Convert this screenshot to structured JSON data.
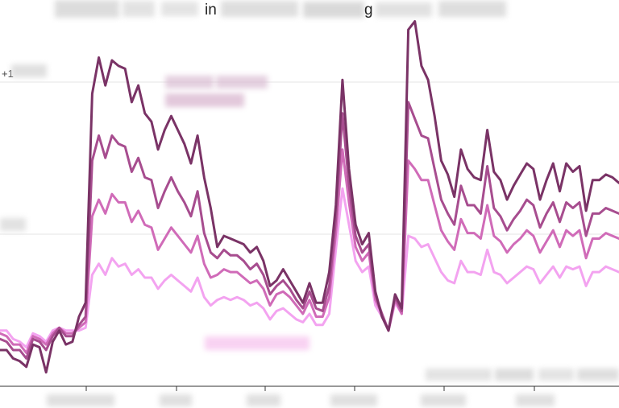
{
  "chart_data": {
    "type": "line",
    "title_fragments": [
      "in",
      "g"
    ],
    "y_tick_labels": [
      "+1",
      ""
    ],
    "x_range": [
      0,
      94
    ],
    "y_range": [
      -1,
      12
    ],
    "series": [
      {
        "color": "#7a3366",
        "values": [
          0.3,
          0.3,
          0.0,
          -0.1,
          -0.3,
          0.5,
          0.4,
          -0.5,
          0.6,
          1.0,
          0.5,
          0.6,
          1.5,
          2.0,
          9.5,
          10.8,
          9.8,
          10.7,
          10.5,
          10.4,
          9.2,
          9.8,
          8.8,
          8.5,
          7.5,
          8.2,
          8.7,
          8.2,
          7.7,
          7.0,
          8.0,
          6.5,
          5.4,
          4.0,
          4.4,
          4.3,
          4.2,
          4.1,
          3.8,
          4.0,
          3.5,
          2.6,
          2.8,
          3.2,
          2.8,
          2.4,
          2.0,
          2.7,
          2.0,
          2.0,
          3.1,
          5.5,
          10.0,
          6.8,
          4.8,
          4.1,
          4.5,
          2.4,
          1.5,
          1.0,
          2.3,
          1.8,
          11.8,
          12.1,
          10.5,
          10.0,
          8.7,
          7.1,
          6.6,
          5.8,
          7.5,
          6.8,
          6.5,
          6.4,
          8.2,
          6.7,
          6.4,
          5.7,
          6.2,
          6.6,
          7.0,
          6.8,
          5.7,
          6.4,
          7.0,
          6.0,
          7.0,
          6.7,
          6.9,
          5.3,
          6.4,
          6.4,
          6.6,
          6.5,
          6.3
        ]
      },
      {
        "color": "#a74d8f",
        "values": [
          0.7,
          0.6,
          0.3,
          0.3,
          0.0,
          0.7,
          0.6,
          0.3,
          0.8,
          1.1,
          0.8,
          0.8,
          1.2,
          1.5,
          7.1,
          8.0,
          7.2,
          8.0,
          7.7,
          7.6,
          6.7,
          7.2,
          6.5,
          6.4,
          5.4,
          6.0,
          6.5,
          6.0,
          5.6,
          5.1,
          6.0,
          4.5,
          3.8,
          3.6,
          3.9,
          3.7,
          3.7,
          3.5,
          3.2,
          3.4,
          3.0,
          2.3,
          2.6,
          2.8,
          2.5,
          2.1,
          1.8,
          2.4,
          1.8,
          1.7,
          2.6,
          5.0,
          8.8,
          6.2,
          4.4,
          3.8,
          4.1,
          2.3,
          1.6,
          1.0,
          2.2,
          1.7,
          9.2,
          8.6,
          8.0,
          7.9,
          6.8,
          5.7,
          5.2,
          4.8,
          6.2,
          5.5,
          5.5,
          5.2,
          6.9,
          5.4,
          5.1,
          4.6,
          5.0,
          5.3,
          5.7,
          5.5,
          4.7,
          5.2,
          5.6,
          4.9,
          5.6,
          5.4,
          5.6,
          4.4,
          5.2,
          5.2,
          5.4,
          5.3,
          5.2
        ]
      },
      {
        "color": "#d06bb8",
        "values": [
          0.9,
          0.8,
          0.5,
          0.5,
          0.2,
          0.8,
          0.7,
          0.5,
          0.9,
          1.1,
          0.9,
          0.9,
          1.1,
          1.3,
          5.1,
          5.7,
          5.2,
          5.9,
          5.6,
          5.6,
          4.9,
          5.3,
          4.8,
          4.7,
          3.9,
          4.3,
          4.7,
          4.4,
          4.1,
          3.8,
          4.4,
          3.4,
          2.9,
          3.0,
          3.2,
          3.1,
          3.1,
          2.9,
          2.7,
          2.8,
          2.5,
          1.9,
          2.3,
          2.4,
          2.2,
          1.9,
          1.6,
          2.1,
          1.5,
          1.5,
          2.2,
          4.5,
          7.5,
          5.6,
          4.0,
          3.5,
          3.8,
          2.1,
          1.6,
          1.0,
          2.1,
          1.6,
          7.1,
          6.8,
          6.4,
          6.4,
          5.5,
          4.6,
          4.2,
          3.9,
          5.0,
          4.5,
          4.5,
          4.3,
          5.5,
          4.4,
          4.2,
          3.8,
          4.1,
          4.3,
          4.6,
          4.4,
          3.8,
          4.2,
          4.6,
          4.0,
          4.6,
          4.4,
          4.6,
          3.6,
          4.3,
          4.3,
          4.5,
          4.4,
          4.3
        ]
      },
      {
        "color": "#f3a3f0",
        "values": [
          1.0,
          1.0,
          0.7,
          0.6,
          0.4,
          0.9,
          0.8,
          0.6,
          1.0,
          1.1,
          1.0,
          1.0,
          1.0,
          1.1,
          3.0,
          3.4,
          3.0,
          3.6,
          3.3,
          3.4,
          3.0,
          3.2,
          2.9,
          2.9,
          2.5,
          2.8,
          3.0,
          2.8,
          2.6,
          2.4,
          2.9,
          2.2,
          1.9,
          2.1,
          2.2,
          2.1,
          2.2,
          2.1,
          1.9,
          2.0,
          1.8,
          1.4,
          1.7,
          1.8,
          1.6,
          1.4,
          1.3,
          1.6,
          1.2,
          1.2,
          1.6,
          3.9,
          6.1,
          4.8,
          3.5,
          3.1,
          3.3,
          1.9,
          1.5,
          1.0,
          2.0,
          1.6,
          4.4,
          4.3,
          4.0,
          4.1,
          3.6,
          3.1,
          2.8,
          2.7,
          3.5,
          3.1,
          3.1,
          3.0,
          3.9,
          3.1,
          3.0,
          2.7,
          2.9,
          3.1,
          3.3,
          3.2,
          2.7,
          3.0,
          3.3,
          2.9,
          3.3,
          3.2,
          3.3,
          2.6,
          3.1,
          3.1,
          3.3,
          3.2,
          3.1
        ]
      }
    ]
  }
}
